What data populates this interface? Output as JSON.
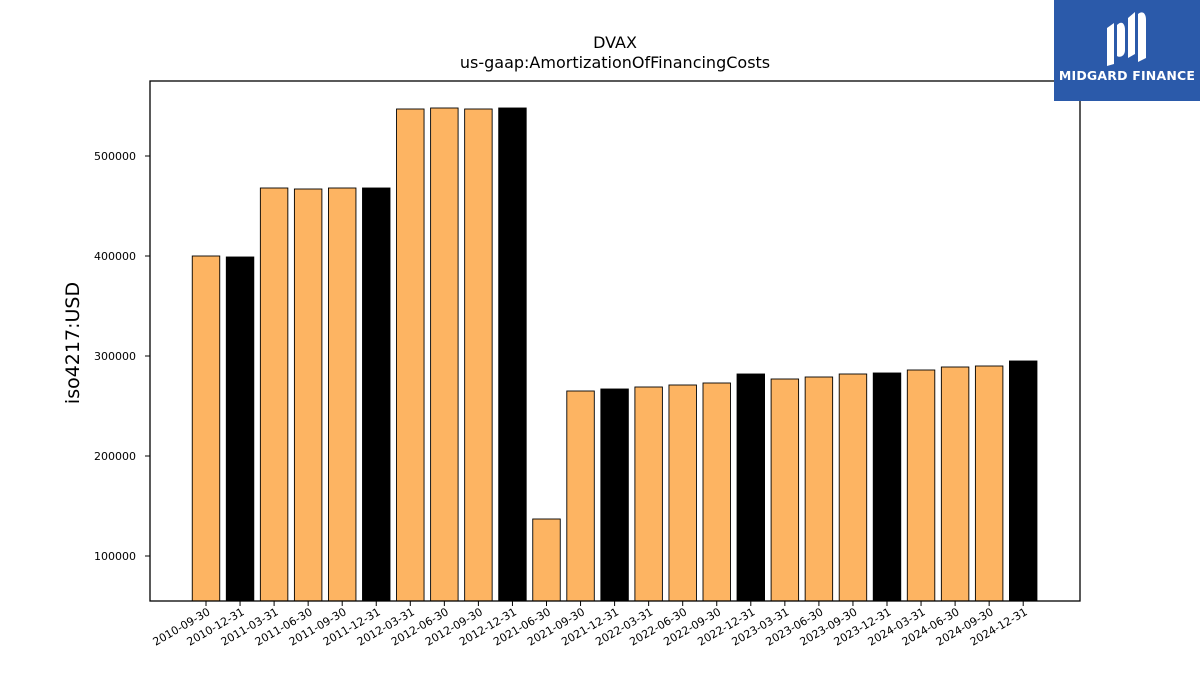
{
  "chart_data": {
    "type": "bar",
    "title": "DVAX",
    "subtitle": "us-gaap:AmortizationOfFinancingCosts",
    "xlabel": "",
    "ylabel": "iso4217:USD",
    "ylim": [
      55000,
      575000
    ],
    "yticks": [
      100000,
      200000,
      300000,
      400000,
      500000
    ],
    "grid": false,
    "categories": [
      "2010-09-30",
      "2010-12-31",
      "2011-03-31",
      "2011-06-30",
      "2011-09-30",
      "2011-12-31",
      "2012-03-31",
      "2012-06-30",
      "2012-09-30",
      "2012-12-31",
      "2021-06-30",
      "2021-09-30",
      "2021-12-31",
      "2022-03-31",
      "2022-06-30",
      "2022-09-30",
      "2022-12-31",
      "2023-03-31",
      "2023-06-30",
      "2023-09-30",
      "2023-12-31",
      "2024-03-31",
      "2024-06-30",
      "2024-09-30",
      "2024-12-31"
    ],
    "values": [
      400000,
      399000,
      468000,
      467000,
      468000,
      468000,
      547000,
      548000,
      547000,
      548000,
      137000,
      265000,
      267000,
      269000,
      271000,
      273000,
      282000,
      277000,
      279000,
      282000,
      283000,
      286000,
      289000,
      290000,
      295000
    ],
    "bar_fill": [
      "quarter",
      "annual",
      "quarter",
      "quarter",
      "quarter",
      "annual",
      "quarter",
      "quarter",
      "quarter",
      "annual",
      "quarter",
      "quarter",
      "annual",
      "quarter",
      "quarter",
      "quarter",
      "annual",
      "quarter",
      "quarter",
      "quarter",
      "annual",
      "quarter",
      "quarter",
      "quarter",
      "annual"
    ],
    "colors": {
      "quarter": "#fdb462",
      "annual": "#000000",
      "edge": "#000000"
    }
  },
  "logo": {
    "text": "MIDGARD FINANCE",
    "background": "#2b5aaa"
  }
}
